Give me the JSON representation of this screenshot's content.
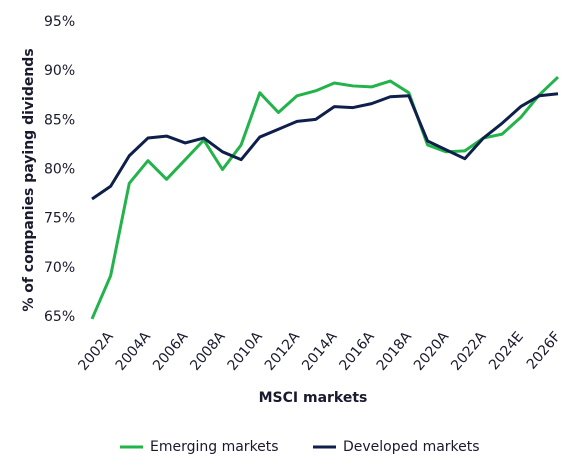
{
  "chart_data": {
    "type": "line",
    "y_label": "% of companies paying dividends",
    "x_label": "MSCI markets",
    "categories": [
      null,
      "2002A",
      null,
      "2004A",
      null,
      "2006A",
      null,
      "2008A",
      null,
      "2010A",
      null,
      "2012A",
      null,
      "2014A",
      null,
      "2016A",
      null,
      "2018A",
      null,
      "2020A",
      null,
      "2022A",
      null,
      "2024E",
      null,
      "2026F"
    ],
    "series": [
      {
        "name": "Emerging markets",
        "color": "#22b34b",
        "values": [
          64.8,
          69.2,
          78.6,
          80.9,
          79.0,
          81.0,
          83.0,
          80.0,
          82.5,
          87.8,
          85.8,
          87.5,
          88.0,
          88.8,
          88.5,
          88.4,
          89.0,
          87.8,
          82.5,
          81.8,
          81.9,
          83.2,
          83.6,
          85.3,
          87.6,
          89.4
        ]
      },
      {
        "name": "Developed markets",
        "color": "#0f1f4b",
        "values": [
          77.0,
          78.3,
          81.4,
          83.2,
          83.4,
          82.7,
          83.2,
          81.8,
          81.0,
          83.3,
          84.1,
          84.9,
          85.1,
          86.4,
          86.3,
          86.7,
          87.4,
          87.5,
          82.9,
          82.0,
          81.1,
          83.2,
          84.7,
          86.4,
          87.5,
          87.7
        ]
      }
    ],
    "ylim": [
      64.5,
      96
    ],
    "yticks": [
      {
        "value": 65,
        "label": "65%"
      },
      {
        "value": 70,
        "label": "70%"
      },
      {
        "value": 75,
        "label": "75%"
      },
      {
        "value": 80,
        "label": "80%"
      },
      {
        "value": 85,
        "label": "85%"
      },
      {
        "value": 90,
        "label": "90%"
      },
      {
        "value": 95,
        "label": "95%"
      }
    ],
    "grid": false,
    "legend": "bottom"
  }
}
